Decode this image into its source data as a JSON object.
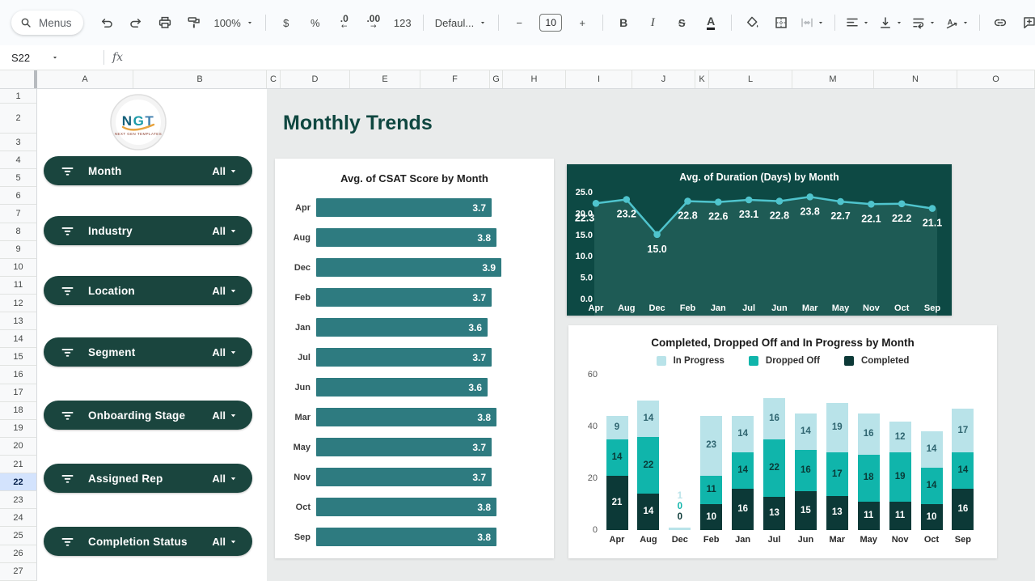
{
  "toolbar": {
    "items": [
      {
        "kind": "search",
        "name": "menus-search",
        "label": "Menus"
      },
      {
        "kind": "icon",
        "name": "undo-icon"
      },
      {
        "kind": "icon",
        "name": "redo-icon"
      },
      {
        "kind": "icon",
        "name": "print-icon"
      },
      {
        "kind": "icon",
        "name": "paint-format-icon"
      },
      {
        "kind": "dropdown",
        "name": "zoom-select",
        "label": "100%"
      },
      {
        "kind": "divider"
      },
      {
        "kind": "text",
        "name": "format-currency-button",
        "label": "$"
      },
      {
        "kind": "text",
        "name": "format-percent-button",
        "label": "%"
      },
      {
        "kind": "decimal",
        "name": "decrease-decimal-button",
        "label": ".0",
        "arrow": "←"
      },
      {
        "kind": "decimal",
        "name": "increase-decimal-button",
        "label": ".00",
        "arrow": "→"
      },
      {
        "kind": "text",
        "name": "more-formats-button",
        "label": "123"
      },
      {
        "kind": "divider"
      },
      {
        "kind": "dropdown",
        "name": "font-select",
        "label": "Defaul..."
      },
      {
        "kind": "divider"
      },
      {
        "kind": "text",
        "name": "decrease-font-size-button",
        "label": "−"
      },
      {
        "kind": "sizebox",
        "name": "font-size-input",
        "label": "10"
      },
      {
        "kind": "text",
        "name": "increase-font-size-button",
        "label": "+"
      },
      {
        "kind": "divider"
      },
      {
        "kind": "text",
        "name": "bold-button",
        "label": "B",
        "style": "bold"
      },
      {
        "kind": "text",
        "name": "italic-button",
        "label": "I",
        "style": "italic"
      },
      {
        "kind": "text",
        "name": "strikethrough-button",
        "label": "S",
        "style": "strike"
      },
      {
        "kind": "textcolor",
        "name": "text-color-button",
        "label": "A"
      },
      {
        "kind": "divider"
      },
      {
        "kind": "icon",
        "name": "fill-color-icon"
      },
      {
        "kind": "icon",
        "name": "borders-icon"
      },
      {
        "kind": "iconcaret",
        "name": "merge-cells-icon",
        "disabled": true
      },
      {
        "kind": "divider"
      },
      {
        "kind": "iconcaret",
        "name": "horizontal-align-icon"
      },
      {
        "kind": "iconcaret",
        "name": "vertical-align-icon"
      },
      {
        "kind": "iconcaret",
        "name": "text-wrap-icon"
      },
      {
        "kind": "iconcaret",
        "name": "text-rotation-icon"
      },
      {
        "kind": "divider"
      },
      {
        "kind": "icon",
        "name": "insert-link-icon"
      },
      {
        "kind": "icon",
        "name": "insert-comment-icon"
      },
      {
        "kind": "icon",
        "name": "insert-chart-icon"
      },
      {
        "kind": "icon",
        "name": "create-filter-icon"
      },
      {
        "kind": "icon",
        "name": "table-icon"
      }
    ]
  },
  "formula_bar": {
    "name_box": "S22",
    "fx_label": "fx"
  },
  "grid": {
    "columns": [
      "A",
      "B",
      "C",
      "D",
      "E",
      "F",
      "G",
      "H",
      "I",
      "J",
      "K",
      "L",
      "M",
      "N",
      "O"
    ],
    "row_count": 27,
    "selected_row": 22
  },
  "sidebar": {
    "logo": {
      "letters": [
        {
          "ch": "N",
          "color": "#15607a"
        },
        {
          "ch": "G",
          "color": "#1b9aa8"
        },
        {
          "ch": "T",
          "color": "#3f7fae"
        }
      ],
      "caption": "NEXT GEN TEMPLATES"
    },
    "filters": [
      {
        "label": "Month",
        "value": "All"
      },
      {
        "label": "Industry",
        "value": "All"
      },
      {
        "label": "Location",
        "value": "All"
      },
      {
        "label": "Segment",
        "value": "All"
      },
      {
        "label": "Onboarding Stage",
        "value": "All"
      },
      {
        "label": "Assigned Rep",
        "value": "All"
      },
      {
        "label": "Completion Status",
        "value": "All"
      }
    ]
  },
  "main": {
    "title": "Monthly Trends"
  },
  "chart_data": [
    {
      "type": "bar",
      "orientation": "horizontal",
      "title": "Avg. of CSAT Score by Month",
      "categories": [
        "Apr",
        "Aug",
        "Dec",
        "Feb",
        "Jan",
        "Jul",
        "Jun",
        "Mar",
        "May",
        "Nov",
        "Oct",
        "Sep"
      ],
      "values": [
        3.7,
        3.8,
        3.9,
        3.7,
        3.6,
        3.7,
        3.6,
        3.8,
        3.7,
        3.7,
        3.8,
        3.8
      ],
      "xlim": [
        0,
        4.05
      ],
      "bar_color": "#2e7b80",
      "value_labels": true
    },
    {
      "type": "line",
      "title": "Avg. of Duration (Days) by Month",
      "categories": [
        "Apr",
        "Aug",
        "Dec",
        "Feb",
        "Jan",
        "Jul",
        "Jun",
        "Mar",
        "May",
        "Nov",
        "Oct",
        "Sep"
      ],
      "values": [
        22.3,
        23.2,
        15.0,
        22.8,
        22.6,
        23.1,
        22.8,
        23.8,
        22.7,
        22.1,
        22.2,
        21.1
      ],
      "ylim": [
        0,
        25
      ],
      "yticks": [
        25.0,
        20.0,
        15.0,
        10.0,
        5.0,
        0.0
      ],
      "bg_color": "#0d4944",
      "line_color": "#4fc4cd",
      "area_color": "#1e5b55",
      "marker": "circle",
      "value_labels": true
    },
    {
      "type": "bar",
      "stacked": true,
      "title": "Completed, Dropped Off and  In Progress by Month",
      "categories": [
        "Apr",
        "Aug",
        "Dec",
        "Feb",
        "Jan",
        "Jul",
        "Jun",
        "Mar",
        "May",
        "Nov",
        "Oct",
        "Sep"
      ],
      "series": [
        {
          "name": "In Progress",
          "color": "#b9e3e9",
          "label_color": "#2f6570",
          "values": [
            9,
            14,
            1,
            23,
            14,
            16,
            14,
            19,
            16,
            12,
            14,
            17
          ]
        },
        {
          "name": "Dropped Off",
          "color": "#10b5ab",
          "label_color": "#093a37",
          "values": [
            14,
            22,
            0,
            11,
            14,
            22,
            16,
            17,
            18,
            19,
            14,
            14
          ]
        },
        {
          "name": "Completed",
          "color": "#0c3937",
          "label_color": "#ffffff",
          "values": [
            21,
            14,
            0,
            10,
            16,
            13,
            15,
            13,
            11,
            11,
            10,
            16
          ]
        }
      ],
      "stack_order_bottom_to_top": [
        "Completed",
        "Dropped Off",
        "In Progress"
      ],
      "legend_position": "top",
      "ylim": [
        0,
        60
      ],
      "yticks": [
        60,
        40,
        20,
        0
      ]
    }
  ]
}
